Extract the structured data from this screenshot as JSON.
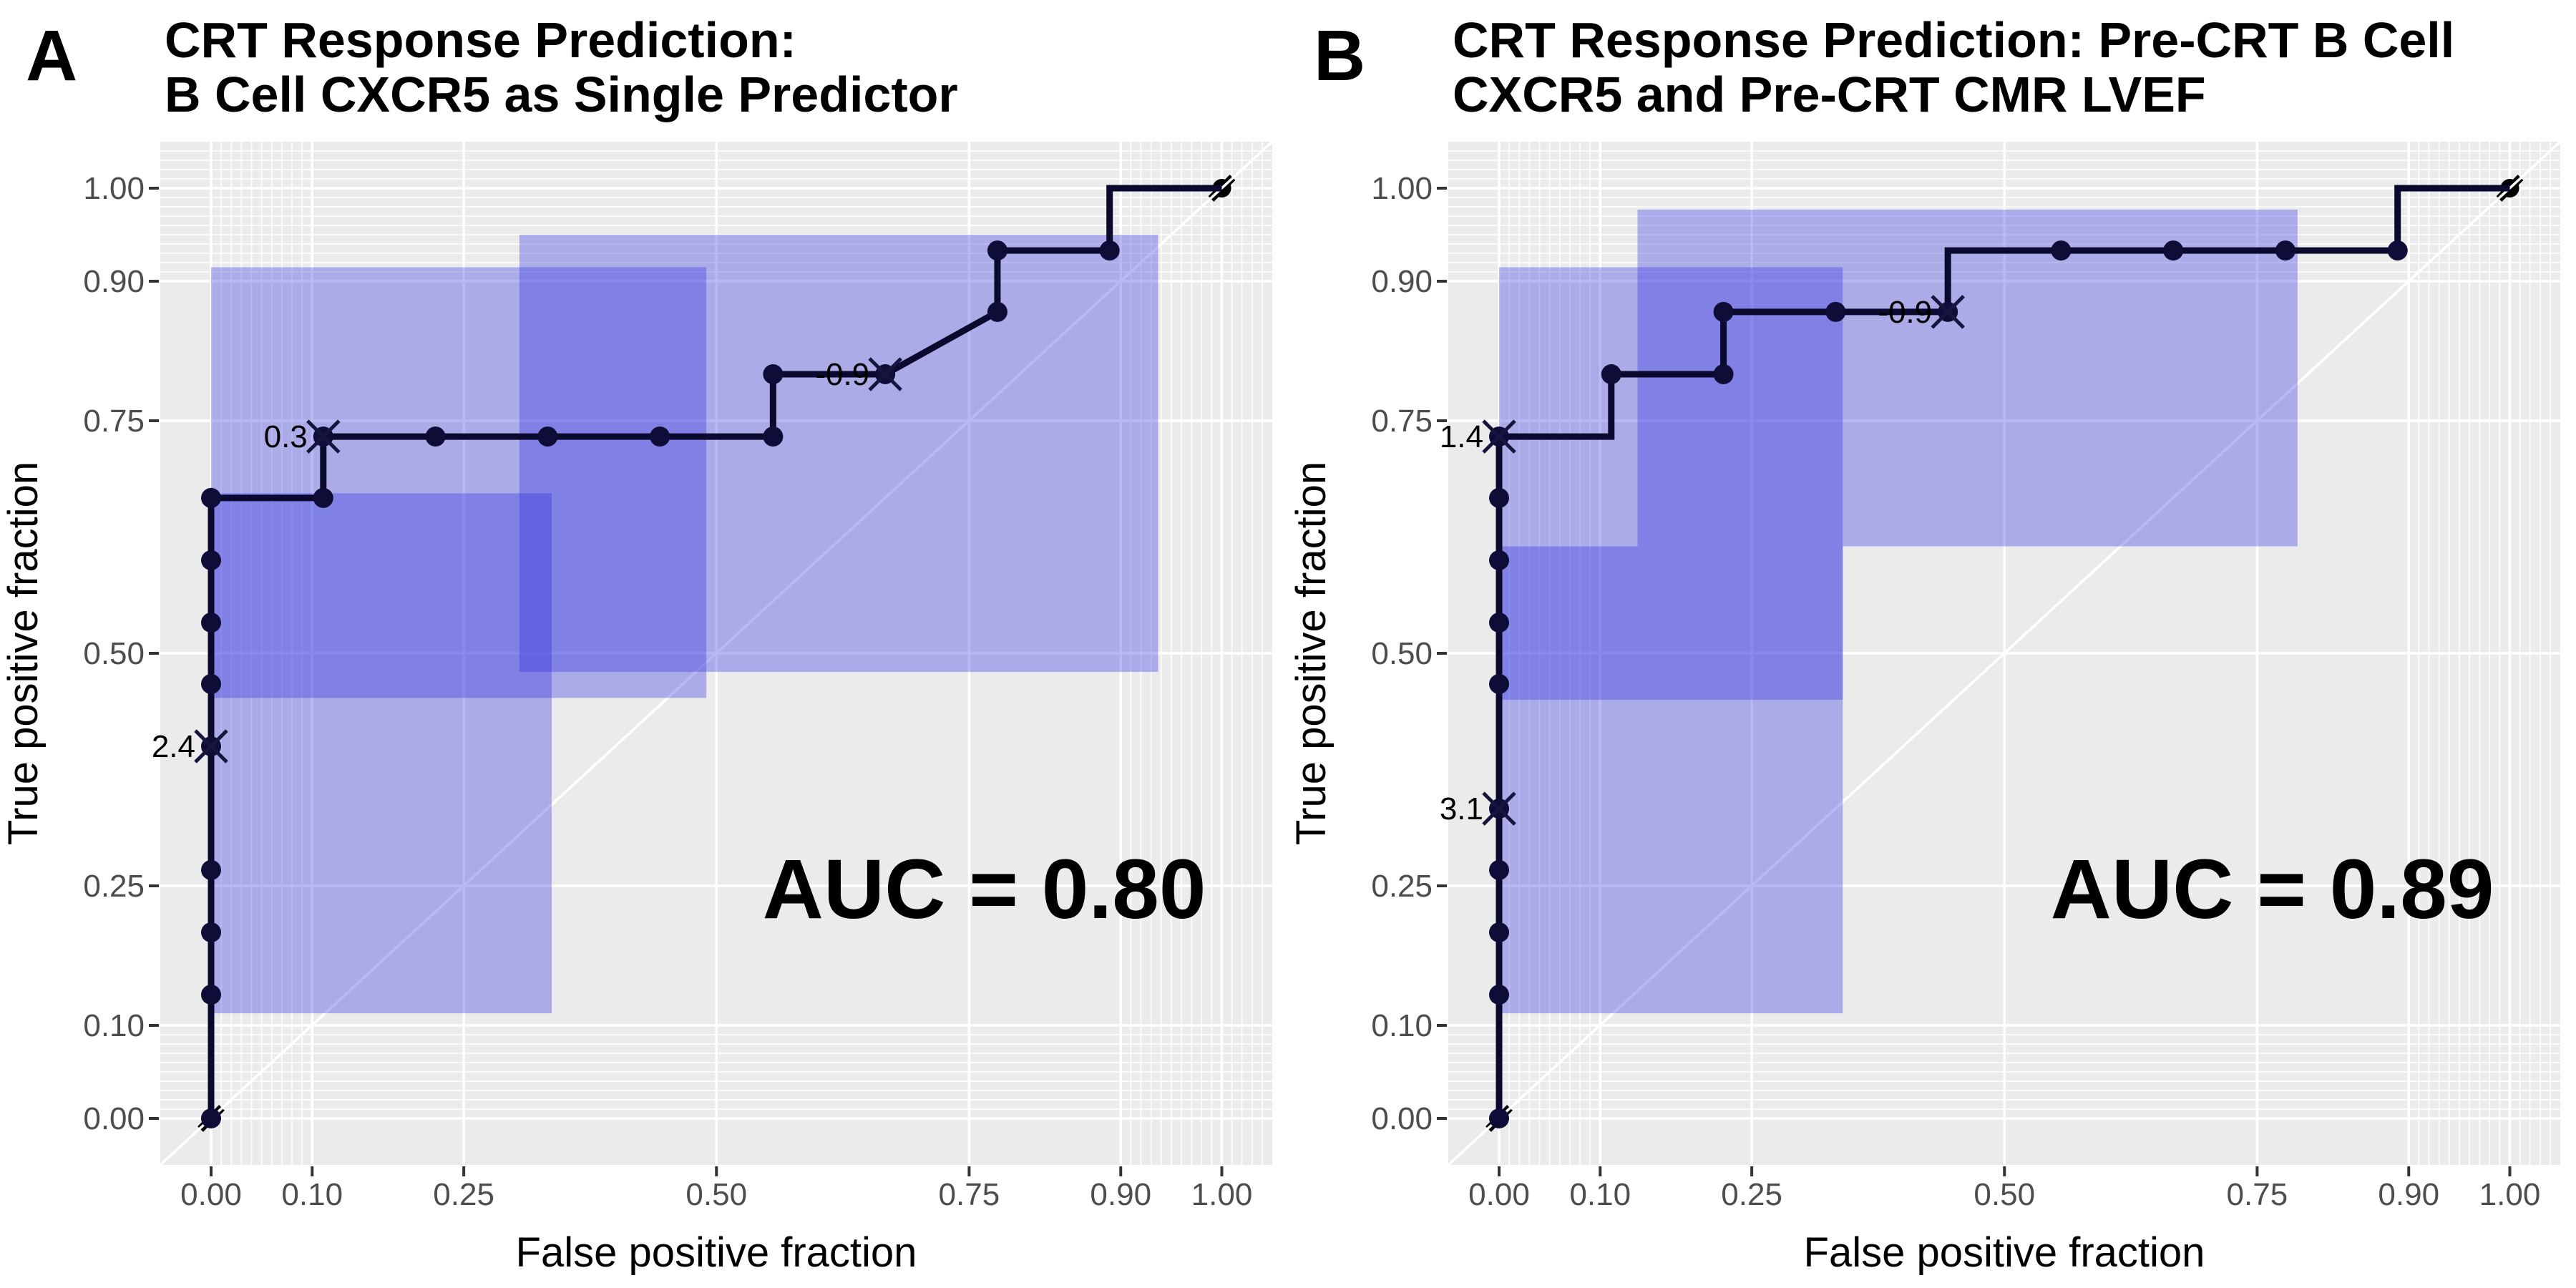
{
  "figure": {
    "kind": "roc-curve-figure",
    "background": "#ffffff"
  },
  "style": {
    "panel_bg": "#ebebeb",
    "grid_color": "#ffffff",
    "rect_fill": "#2a2ae0",
    "rect_opacity": 0.33,
    "roc_color": "#0a0a2e",
    "dot_color": "#0d0d38",
    "cross_color": "#15153d",
    "hash_color": "#000000",
    "tick_text_color": "#4d4d4d",
    "text_color": "#000000"
  },
  "axes": {
    "xlabel": "False positive fraction",
    "ylabel": "True positive fraction",
    "tick_values": [
      0.0,
      0.1,
      0.25,
      0.5,
      0.75,
      0.9,
      1.0
    ],
    "tick_labels": [
      "0.00",
      "0.10",
      "0.25",
      "0.50",
      "0.75",
      "0.90",
      "1.00"
    ],
    "minor_breaks": [
      0.01,
      0.02,
      0.03,
      0.04,
      0.05,
      0.06,
      0.07,
      0.08,
      0.09,
      0.91,
      0.92,
      0.93,
      0.94,
      0.95,
      0.96,
      0.97,
      0.98,
      0.99,
      1.01,
      1.02,
      1.03,
      1.04
    ],
    "xlim": [
      -0.05,
      1.05
    ],
    "ylim": [
      -0.05,
      1.05
    ],
    "grid": true,
    "diagonal_reference_line": true
  },
  "chart_data": [
    {
      "type": "line",
      "panel_letter": "A",
      "title_lines": [
        "CRT Response Prediction:",
        "B Cell CXCR5 as Single Predictor"
      ],
      "auc_label": "AUC = 0.80",
      "auc_value": 0.8,
      "roc_path": [
        [
          0,
          0
        ],
        [
          0,
          0.667
        ],
        [
          0.111,
          0.667
        ],
        [
          0.111,
          0.733
        ],
        [
          0.556,
          0.733
        ],
        [
          0.556,
          0.8
        ],
        [
          0.667,
          0.8
        ],
        [
          0.778,
          0.867
        ],
        [
          0.778,
          0.933
        ],
        [
          0.889,
          0.933
        ],
        [
          0.889,
          1.0
        ],
        [
          1.0,
          1.0
        ]
      ],
      "dots": [
        [
          0,
          0
        ],
        [
          0,
          0.133
        ],
        [
          0,
          0.2
        ],
        [
          0,
          0.267
        ],
        [
          0,
          0.467
        ],
        [
          0,
          0.533
        ],
        [
          0,
          0.6
        ],
        [
          0,
          0.667
        ],
        [
          0.111,
          0.667
        ],
        [
          0.222,
          0.733
        ],
        [
          0.333,
          0.733
        ],
        [
          0.444,
          0.733
        ],
        [
          0.556,
          0.733
        ],
        [
          0.556,
          0.8
        ],
        [
          0.778,
          0.867
        ],
        [
          0.778,
          0.933
        ],
        [
          0.889,
          0.933
        ]
      ],
      "cutpoints": [
        {
          "label": "2.4",
          "x": 0.0,
          "y": 0.4
        },
        {
          "label": "0.3",
          "x": 0.111,
          "y": 0.733
        },
        {
          "label": "-0.9",
          "x": 0.667,
          "y": 0.8
        }
      ],
      "confidence_rects": [
        {
          "x1": 0.0,
          "x2": 0.337,
          "y1": 0.113,
          "y2": 0.672
        },
        {
          "x1": 0.0,
          "x2": 0.49,
          "y1": 0.452,
          "y2": 0.915
        },
        {
          "x1": 0.305,
          "x2": 0.937,
          "y1": 0.48,
          "y2": 0.95
        }
      ],
      "chance_endpoints": [
        [
          0,
          0
        ],
        [
          1,
          1
        ]
      ]
    },
    {
      "type": "line",
      "panel_letter": "B",
      "title_lines": [
        "CRT Response Prediction: Pre-CRT B Cell",
        "CXCR5 and Pre-CRT CMR LVEF"
      ],
      "auc_label": "AUC = 0.89",
      "auc_value": 0.89,
      "roc_path": [
        [
          0,
          0
        ],
        [
          0,
          0.733
        ],
        [
          0.111,
          0.733
        ],
        [
          0.111,
          0.8
        ],
        [
          0.222,
          0.8
        ],
        [
          0.222,
          0.867
        ],
        [
          0.444,
          0.867
        ],
        [
          0.444,
          0.933
        ],
        [
          0.889,
          0.933
        ],
        [
          0.889,
          1.0
        ],
        [
          1.0,
          1.0
        ]
      ],
      "dots": [
        [
          0,
          0
        ],
        [
          0,
          0.133
        ],
        [
          0,
          0.2
        ],
        [
          0,
          0.267
        ],
        [
          0,
          0.467
        ],
        [
          0,
          0.533
        ],
        [
          0,
          0.6
        ],
        [
          0,
          0.667
        ],
        [
          0.111,
          0.8
        ],
        [
          0.222,
          0.8
        ],
        [
          0.222,
          0.867
        ],
        [
          0.333,
          0.867
        ],
        [
          0.556,
          0.933
        ],
        [
          0.667,
          0.933
        ],
        [
          0.778,
          0.933
        ],
        [
          0.889,
          0.933
        ]
      ],
      "cutpoints": [
        {
          "label": "3.1",
          "x": 0.0,
          "y": 0.333
        },
        {
          "label": "1.4",
          "x": 0.0,
          "y": 0.733
        },
        {
          "label": "-0.9",
          "x": 0.444,
          "y": 0.867
        }
      ],
      "confidence_rects": [
        {
          "x1": 0.0,
          "x2": 0.34,
          "y1": 0.113,
          "y2": 0.615
        },
        {
          "x1": 0.0,
          "x2": 0.34,
          "y1": 0.45,
          "y2": 0.915
        },
        {
          "x1": 0.137,
          "x2": 0.79,
          "y1": 0.615,
          "y2": 0.977
        }
      ],
      "chance_endpoints": [
        [
          0,
          0
        ],
        [
          1,
          1
        ]
      ]
    }
  ],
  "layout_text": {
    "note": "two-panel ROC figure"
  }
}
